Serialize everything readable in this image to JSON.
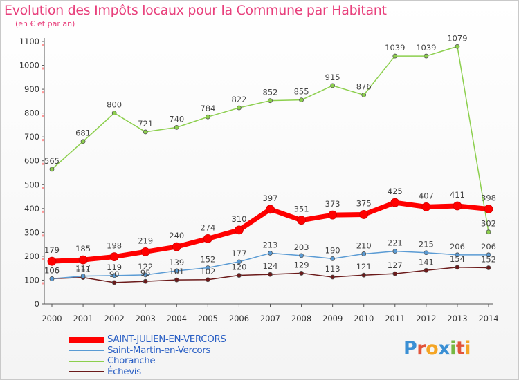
{
  "header": {
    "title": "Evolution des Impôts locaux pour la Commune par Habitant",
    "subtitle": "(en € et par an)"
  },
  "logo": {
    "letters": [
      "P",
      "r",
      "o",
      "x",
      "i",
      "t",
      "i"
    ],
    "colors": [
      "#3a8fd4",
      "#e2543a",
      "#f4a525",
      "#3a8fd4",
      "#77b843",
      "#e2543a",
      "#f4a525"
    ]
  },
  "chart_data": {
    "type": "line",
    "x": [
      2000,
      2001,
      2002,
      2003,
      2004,
      2005,
      2006,
      2007,
      2008,
      2009,
      2010,
      2011,
      2012,
      2013,
      2014
    ],
    "ylim": [
      0,
      1100
    ],
    "yticks": [
      0,
      100,
      200,
      300,
      400,
      500,
      600,
      700,
      800,
      900,
      1000,
      1100
    ],
    "grid": false,
    "legend_position": "bottom-left",
    "series": [
      {
        "name": "Échevis",
        "color": "#6b1a1a",
        "values": [
          106,
          111,
          90,
          95,
          101,
          102,
          120,
          124,
          129,
          113,
          121,
          127,
          141,
          154,
          152
        ]
      },
      {
        "name": "Saint-Martin-en-Vercors",
        "color": "#5a9bd4",
        "values": [
          106,
          117,
          119,
          122,
          139,
          152,
          177,
          213,
          203,
          190,
          210,
          221,
          215,
          206,
          206
        ]
      },
      {
        "name": "Choranche",
        "color": "#8ccf4d",
        "values": [
          565,
          681,
          800,
          721,
          740,
          784,
          822,
          852,
          855,
          915,
          876,
          1039,
          1039,
          1079,
          302
        ]
      },
      {
        "name": "SAINT-JULIEN-EN-VERCORS",
        "color": "#ff0000",
        "values": [
          179,
          185,
          198,
          219,
          240,
          274,
          310,
          397,
          351,
          373,
          375,
          425,
          407,
          411,
          398
        ]
      }
    ],
    "legend_order": [
      "SAINT-JULIEN-EN-VERCORS",
      "Saint-Martin-en-Vercors",
      "Choranche",
      "Échevis"
    ]
  }
}
